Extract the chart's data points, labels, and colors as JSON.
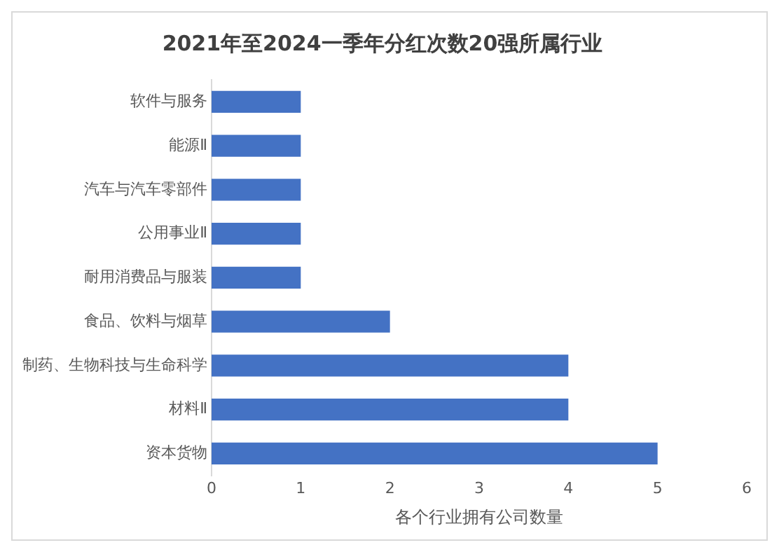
{
  "chart_data": {
    "type": "bar",
    "orientation": "horizontal",
    "title": "2021年至2024一季年分红次数20强所属行业",
    "xlabel": "各个行业拥有公司数量",
    "categories": [
      "软件与服务",
      "能源Ⅱ",
      "汽车与汽车零部件",
      "公用事业Ⅱ",
      "耐用消费品与服装",
      "食品、饮料与烟草",
      "制药、生物科技与生命科学",
      "材料Ⅱ",
      "资本货物"
    ],
    "values": [
      1,
      1,
      1,
      1,
      1,
      2,
      4,
      4,
      5
    ],
    "color": "#4472c4",
    "xlim": [
      0,
      6
    ],
    "xticks": [
      0,
      1,
      2,
      3,
      4,
      5,
      6
    ],
    "grid": false,
    "legend": false
  }
}
